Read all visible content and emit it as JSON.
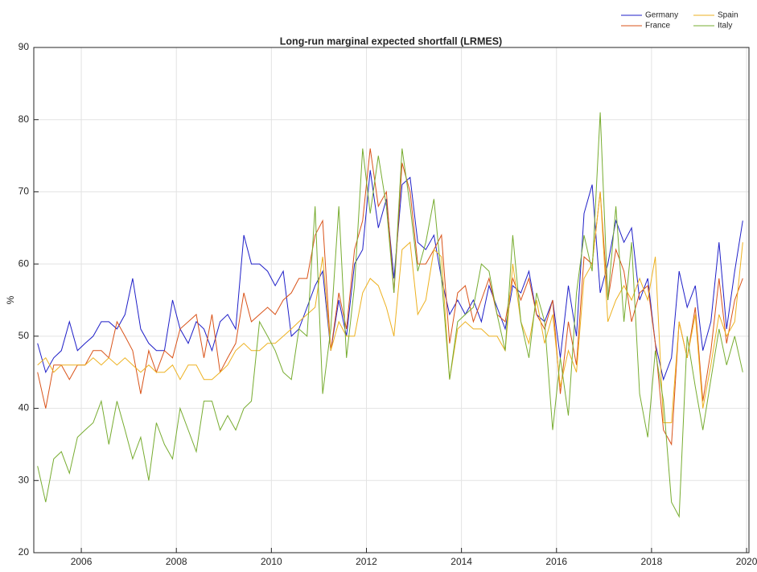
{
  "chart_data": {
    "type": "line",
    "title": "Long-run marginal expected shortfall (LRMES)",
    "ylabel": "%",
    "xlim": [
      2005,
      2020.05
    ],
    "ylim": [
      20,
      90
    ],
    "xticks": [
      2006,
      2008,
      2010,
      2012,
      2014,
      2016,
      2018,
      2020
    ],
    "yticks": [
      20,
      30,
      40,
      50,
      60,
      70,
      80,
      90
    ],
    "grid": true,
    "legend": "top-right",
    "x": [
      2005.08,
      2005.25,
      2005.42,
      2005.58,
      2005.75,
      2005.92,
      2006.08,
      2006.25,
      2006.42,
      2006.58,
      2006.75,
      2006.92,
      2007.08,
      2007.25,
      2007.42,
      2007.58,
      2007.75,
      2007.92,
      2008.08,
      2008.25,
      2008.42,
      2008.58,
      2008.75,
      2008.92,
      2009.08,
      2009.25,
      2009.42,
      2009.58,
      2009.75,
      2009.92,
      2010.08,
      2010.25,
      2010.42,
      2010.58,
      2010.75,
      2010.92,
      2011.08,
      2011.25,
      2011.42,
      2011.58,
      2011.75,
      2011.92,
      2012.08,
      2012.25,
      2012.42,
      2012.58,
      2012.75,
      2012.92,
      2013.08,
      2013.25,
      2013.42,
      2013.58,
      2013.75,
      2013.92,
      2014.08,
      2014.25,
      2014.42,
      2014.58,
      2014.75,
      2014.92,
      2015.08,
      2015.25,
      2015.42,
      2015.58,
      2015.75,
      2015.92,
      2016.08,
      2016.25,
      2016.42,
      2016.58,
      2016.75,
      2016.92,
      2017.08,
      2017.25,
      2017.42,
      2017.58,
      2017.75,
      2017.92,
      2018.08,
      2018.25,
      2018.42,
      2018.58,
      2018.75,
      2018.92,
      2019.08,
      2019.25,
      2019.42,
      2019.58,
      2019.75,
      2019.92
    ],
    "series": [
      {
        "name": "Germany",
        "color": "#1f1fc8",
        "values": [
          49,
          45,
          47,
          48,
          52,
          48,
          49,
          50,
          52,
          52,
          51,
          53,
          58,
          51,
          49,
          48,
          48,
          55,
          51,
          49,
          52,
          51,
          48,
          52,
          53,
          51,
          64,
          60,
          60,
          59,
          57,
          59,
          50,
          51,
          54,
          57,
          59,
          48,
          55,
          50,
          60,
          62,
          73,
          65,
          69,
          58,
          71,
          72,
          63,
          62,
          64,
          58,
          53,
          55,
          53,
          55,
          52,
          57,
          54,
          51,
          57,
          56,
          59,
          53,
          52,
          55,
          47,
          57,
          50,
          67,
          71,
          56,
          60,
          66,
          63,
          65,
          55,
          58,
          49,
          44,
          47,
          59,
          54,
          57,
          48,
          52,
          63,
          51,
          59,
          66
        ]
      },
      {
        "name": "France",
        "color": "#d95319",
        "values": [
          45,
          40,
          46,
          46,
          44,
          46,
          46,
          48,
          48,
          47,
          52,
          50,
          48,
          42,
          48,
          45,
          48,
          47,
          51,
          52,
          53,
          47,
          53,
          45,
          47,
          49,
          56,
          52,
          53,
          54,
          53,
          55,
          56,
          58,
          58,
          64,
          66,
          48,
          56,
          51,
          62,
          66,
          76,
          68,
          70,
          56,
          74,
          70,
          60,
          60,
          62,
          64,
          49,
          56,
          57,
          52,
          55,
          58,
          53,
          52,
          58,
          55,
          58,
          53,
          51,
          55,
          42,
          52,
          46,
          61,
          60,
          70,
          55,
          62,
          59,
          52,
          56,
          57,
          49,
          37,
          35,
          52,
          47,
          54,
          41,
          48,
          58,
          49,
          55,
          58
        ]
      },
      {
        "name": "Spain",
        "color": "#edb120",
        "values": [
          46,
          47,
          45,
          46,
          46,
          46,
          46,
          47,
          46,
          47,
          46,
          47,
          46,
          45,
          46,
          45,
          45,
          46,
          44,
          46,
          46,
          44,
          44,
          45,
          46,
          48,
          49,
          48,
          48,
          49,
          49,
          50,
          51,
          52,
          53,
          54,
          61,
          48,
          52,
          50,
          50,
          56,
          58,
          57,
          54,
          50,
          62,
          63,
          53,
          55,
          62,
          61,
          44,
          51,
          52,
          51,
          51,
          50,
          50,
          48,
          60,
          52,
          49,
          55,
          49,
          53,
          43,
          48,
          45,
          58,
          60,
          70,
          52,
          55,
          57,
          55,
          58,
          55,
          61,
          38,
          38,
          52,
          47,
          53,
          40,
          46,
          53,
          50,
          52,
          63
        ]
      },
      {
        "name": "Italy",
        "color": "#77ac30",
        "values": [
          32,
          27,
          33,
          34,
          31,
          36,
          37,
          38,
          41,
          35,
          41,
          37,
          33,
          36,
          30,
          38,
          35,
          33,
          40,
          37,
          34,
          41,
          41,
          37,
          39,
          37,
          40,
          41,
          52,
          50,
          48,
          45,
          44,
          51,
          50,
          68,
          42,
          51,
          68,
          47,
          57,
          76,
          67,
          75,
          68,
          56,
          76,
          68,
          59,
          63,
          69,
          58,
          44,
          52,
          53,
          54,
          60,
          59,
          53,
          48,
          64,
          52,
          47,
          56,
          52,
          37,
          47,
          39,
          56,
          64,
          59,
          81,
          55,
          68,
          52,
          63,
          42,
          36,
          48,
          41,
          27,
          25,
          50,
          43,
          37,
          44,
          51,
          46,
          50,
          45
        ]
      }
    ]
  }
}
